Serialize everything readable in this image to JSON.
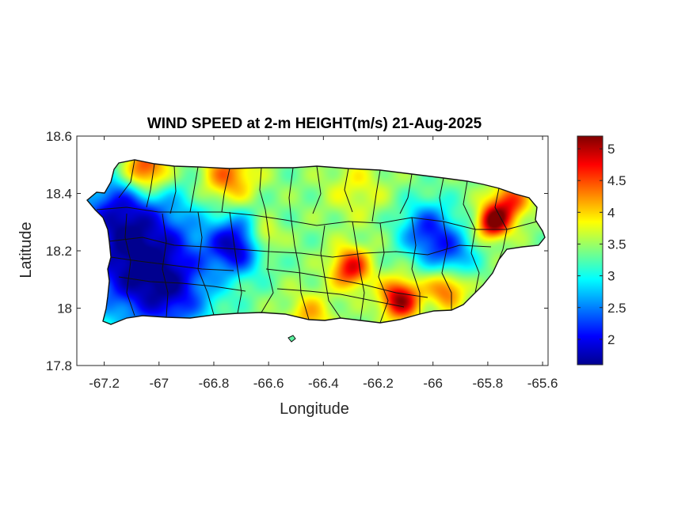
{
  "chart_data": {
    "type": "heatmap",
    "title": "WIND SPEED at 2-m HEIGHT(m/s) 21-Aug-2025",
    "xlabel": "Longitude",
    "ylabel": "Latitude",
    "xlim": [
      -67.3,
      -65.58
    ],
    "ylim": [
      17.8,
      18.6
    ],
    "xticks": [
      -67.2,
      -67,
      -66.8,
      -66.6,
      -66.4,
      -66.2,
      -66,
      -65.8,
      -65.6
    ],
    "xtick_labels": [
      "-67.2",
      "-67",
      "-66.8",
      "-66.6",
      "-66.4",
      "-66.2",
      "-66",
      "-65.8",
      "-65.6"
    ],
    "yticks": [
      17.8,
      18,
      18.2,
      18.4,
      18.6
    ],
    "ytick_labels": [
      "17.8",
      "18",
      "18.2",
      "18.4",
      "18.6"
    ],
    "colorbar": {
      "colormap": "jet",
      "range": [
        1.6,
        5.2
      ],
      "ticks": [
        2,
        2.5,
        3,
        3.5,
        4,
        4.5,
        5
      ],
      "tick_labels": [
        "2",
        "2.5",
        "3",
        "3.5",
        "4",
        "4.5",
        "5"
      ]
    },
    "grid": false,
    "units": "m/s",
    "baseline_value": 3.4,
    "field_features": [
      {
        "lon": -67.08,
        "lat": 18.19,
        "value": 1.6,
        "sigma": 0.16
      },
      {
        "lon": -66.72,
        "lat": 18.22,
        "value": 1.9,
        "sigma": 0.07
      },
      {
        "lon": -66.02,
        "lat": 18.27,
        "value": 2.2,
        "sigma": 0.07
      },
      {
        "lon": -65.93,
        "lat": 18.18,
        "value": 2.5,
        "sigma": 0.06
      },
      {
        "lon": -66.95,
        "lat": 18.04,
        "value": 2.6,
        "sigma": 0.1
      },
      {
        "lon": -67.15,
        "lat": 18.36,
        "value": 2.8,
        "sigma": 0.08
      },
      {
        "lon": -67.05,
        "lat": 18.48,
        "value": 4.9,
        "sigma": 0.06
      },
      {
        "lon": -66.75,
        "lat": 18.46,
        "value": 4.4,
        "sigma": 0.07
      },
      {
        "lon": -65.78,
        "lat": 18.3,
        "value": 5.2,
        "sigma": 0.04
      },
      {
        "lon": -65.72,
        "lat": 18.37,
        "value": 4.6,
        "sigma": 0.05
      },
      {
        "lon": -66.12,
        "lat": 18.03,
        "value": 5.1,
        "sigma": 0.05
      },
      {
        "lon": -66.3,
        "lat": 18.14,
        "value": 4.8,
        "sigma": 0.05
      },
      {
        "lon": -65.95,
        "lat": 18.07,
        "value": 4.5,
        "sigma": 0.05
      },
      {
        "lon": -66.62,
        "lat": 18.25,
        "value": 4.2,
        "sigma": 0.04
      },
      {
        "lon": -66.45,
        "lat": 17.97,
        "value": 4.1,
        "sigma": 0.06
      },
      {
        "lon": -66.28,
        "lat": 18.42,
        "value": 3.8,
        "sigma": 0.08
      }
    ]
  }
}
